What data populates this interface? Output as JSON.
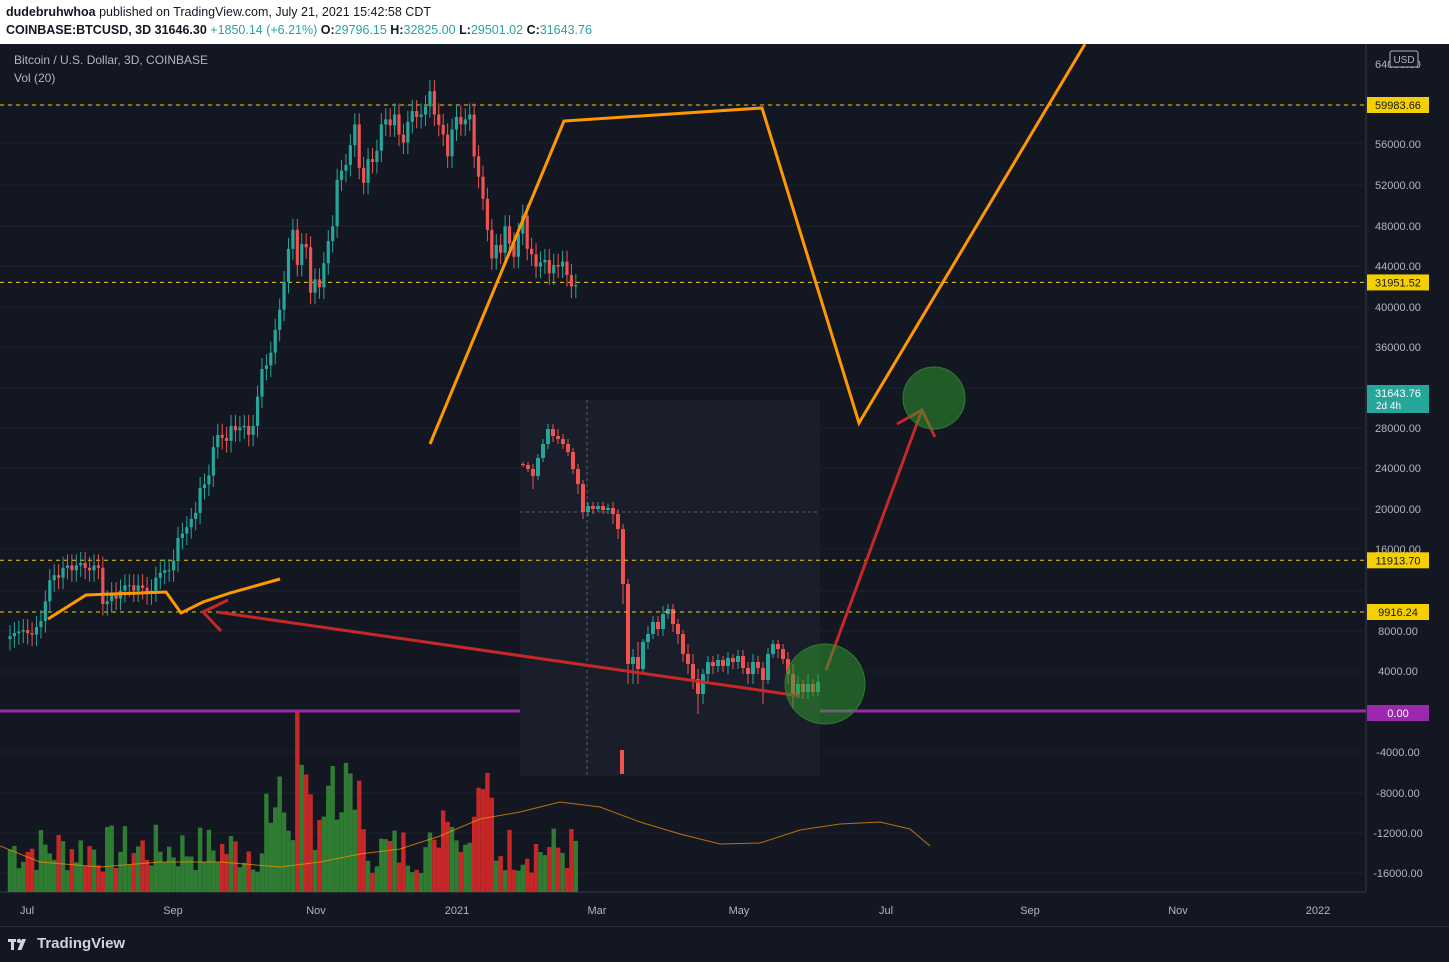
{
  "header": {
    "author": "dudebruhwhoa",
    "published_text": "published on TradingView.com, July 21, 2021 15:42:58 CDT",
    "symbol": "COINBASE:BTCUSD, 3D",
    "price": "31646.30",
    "change": "+1850.14 (+6.21%)",
    "open_label": "O:",
    "open": "29796.15",
    "high_label": "H:",
    "high": "32825.00",
    "low_label": "L:",
    "low": "29501.02",
    "close_label": "C:",
    "close": "31643.76"
  },
  "legend": {
    "title": "Bitcoin / U.S. Dollar, 3D, COINBASE",
    "volume": "Vol (20)"
  },
  "currency": "USD",
  "footer": {
    "brand": "TradingView",
    "logo_icon": "tradingview-logo-icon"
  },
  "colors": {
    "up": "#26a69a",
    "down": "#ef5350",
    "orange": "#ff9800",
    "arrow": "#c62828",
    "purple": "#9c27b0",
    "hline": "#f5d000",
    "volume_up": "#2e7d32",
    "volume_down": "#c62828"
  },
  "chart_data": {
    "type": "candlestick",
    "title": "Bitcoin / U.S. Dollar, 3D, COINBASE",
    "y_scale": "log",
    "price_axis_ticks": [
      "64000.00",
      "56000.00",
      "52000.00",
      "48000.00",
      "44000.00",
      "40000.00",
      "36000.00",
      "28000.00",
      "24000.00",
      "20000.00",
      "16000.00",
      "8000.00",
      "4000.00",
      "-4000.00",
      "-8000.00",
      "-12000.00",
      "-16000.00"
    ],
    "time_axis_ticks": [
      "Jul",
      "Sep",
      "Nov",
      "2021",
      "Mar",
      "May",
      "Jul",
      "Sep",
      "Nov",
      "2022"
    ],
    "price_labels": [
      {
        "value": "59983.66",
        "style": "yellow"
      },
      {
        "value": "31951.52",
        "style": "yellow"
      },
      {
        "value": "31643.76",
        "sub": "2d 4h",
        "style": "teal"
      },
      {
        "value": "11913.70",
        "style": "yellow"
      },
      {
        "value": "9916.24",
        "style": "yellow"
      },
      {
        "value": "0.00",
        "style": "purple"
      }
    ],
    "horizontal_levels": [
      59983.66,
      31951.52,
      11913.7,
      9916.24
    ],
    "zero_line_label": "0.00",
    "series": [
      {
        "name": "BTCUSD 3D close",
        "x": [
          "2020-07-01",
          "2020-07-04",
          "2020-07-07",
          "2020-07-10",
          "2020-07-13",
          "2020-07-16",
          "2020-07-19",
          "2020-07-22",
          "2020-07-25",
          "2020-07-28",
          "2020-07-31",
          "2020-08-03",
          "2020-08-06",
          "2020-08-09",
          "2020-08-12",
          "2020-08-15",
          "2020-08-18",
          "2020-08-21",
          "2020-08-24",
          "2020-08-27",
          "2020-08-30",
          "2020-09-02",
          "2020-09-05",
          "2020-09-08",
          "2020-09-11",
          "2020-09-14",
          "2020-09-17",
          "2020-09-20",
          "2020-09-23",
          "2020-09-26",
          "2020-09-29",
          "2020-10-02",
          "2020-10-05",
          "2020-10-08",
          "2020-10-11",
          "2020-10-14",
          "2020-10-17",
          "2020-10-20",
          "2020-10-23",
          "2020-10-26",
          "2020-10-29",
          "2020-11-01",
          "2020-11-04",
          "2020-11-07",
          "2020-11-10",
          "2020-11-13",
          "2020-11-16",
          "2020-11-19",
          "2020-11-22",
          "2020-11-25",
          "2020-11-28",
          "2020-12-01",
          "2020-12-04",
          "2020-12-07",
          "2020-12-10",
          "2020-12-13",
          "2020-12-16",
          "2020-12-19",
          "2020-12-22",
          "2020-12-25",
          "2020-12-28",
          "2020-12-31",
          "2021-01-03",
          "2021-01-06",
          "2021-01-09",
          "2021-01-12",
          "2021-01-15",
          "2021-01-18",
          "2021-01-21",
          "2021-01-24",
          "2021-01-27",
          "2021-01-30",
          "2021-02-02",
          "2021-02-05",
          "2021-02-08",
          "2021-02-11",
          "2021-02-14",
          "2021-02-17",
          "2021-02-20",
          "2021-02-23",
          "2021-02-26",
          "2021-03-01",
          "2021-03-04",
          "2021-03-07",
          "2021-03-10",
          "2021-03-13",
          "2021-03-16",
          "2021-03-19",
          "2021-03-22",
          "2021-03-25",
          "2021-03-28",
          "2021-03-31",
          "2021-04-03",
          "2021-04-06",
          "2021-04-09",
          "2021-04-12",
          "2021-04-15",
          "2021-04-18",
          "2021-04-21",
          "2021-04-24",
          "2021-04-27",
          "2021-04-30",
          "2021-05-03",
          "2021-05-06",
          "2021-05-09",
          "2021-05-12",
          "2021-05-15",
          "2021-05-18",
          "2021-05-21",
          "2021-05-24",
          "2021-05-27",
          "2021-05-30",
          "2021-06-02",
          "2021-06-05",
          "2021-06-08",
          "2021-06-11",
          "2021-06-14",
          "2021-06-17",
          "2021-06-20",
          "2021-06-23",
          "2021-06-26",
          "2021-06-29",
          "2021-07-02",
          "2021-07-05",
          "2021-07-08",
          "2021-07-11",
          "2021-07-14",
          "2021-07-17",
          "2021-07-20"
        ],
        "close": [
          9100,
          9200,
          9250,
          9300,
          9200,
          9150,
          9400,
          9600,
          10300,
          11100,
          11300,
          11200,
          11600,
          11700,
          11500,
          11700,
          11800,
          11600,
          11500,
          11700,
          11600,
          10200,
          10300,
          10600,
          10400,
          10700,
          10900,
          10900,
          10700,
          10900,
          10800,
          10600,
          10700,
          11200,
          11400,
          11500,
          11500,
          11900,
          12900,
          13100,
          13400,
          13800,
          14100,
          15400,
          15600,
          16100,
          17800,
          18600,
          18400,
          18200,
          19200,
          18900,
          19100,
          19200,
          18600,
          19200,
          21300,
          23500,
          23800,
          24900,
          27000,
          29000,
          32000,
          36000,
          38500,
          34000,
          36600,
          36200,
          30800,
          32300,
          31400,
          34200,
          37000,
          39000,
          46000,
          47500,
          48500,
          52000,
          56000,
          48000,
          45500,
          49500,
          49000,
          51000,
          56000,
          57000,
          55800,
          58000,
          54000,
          52500,
          56500,
          58700,
          57500,
          58000,
          59700,
          63000,
          58000,
          55900,
          54000,
          50000,
          55000,
          57500,
          56000,
          57000,
          58000,
          50000,
          46500,
          43000,
          38500,
          34800,
          36500,
          35500,
          39000,
          36700,
          35000,
          38000,
          40500,
          36000,
          35300,
          33800,
          34300,
          34600,
          33000,
          34000,
          33800,
          34400,
          32800,
          31500,
          31640
        ]
      }
    ],
    "volume_label": "Vol (20)"
  }
}
